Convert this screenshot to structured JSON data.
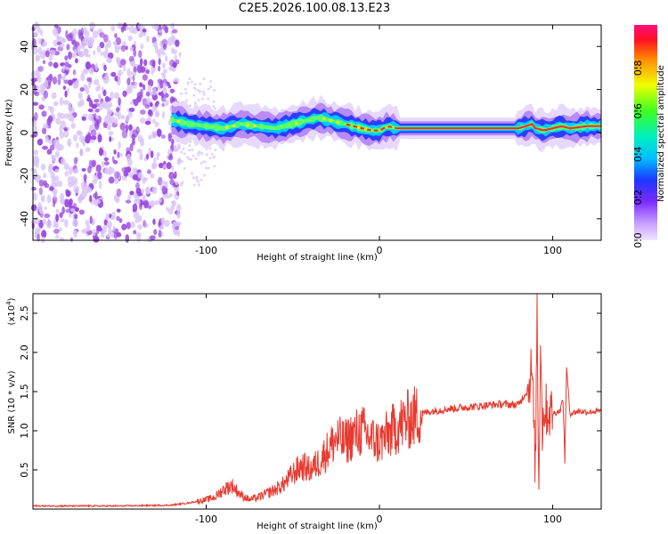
{
  "chart_data": [
    {
      "type": "heatmap",
      "title": "C2E5.2026.100.08.13.E23",
      "xlabel": "Height of straight line (km)",
      "ylabel": "Frequency (Hz)",
      "xlim": [
        -200,
        128
      ],
      "ylim": [
        -50,
        50
      ],
      "xticks": [
        -100,
        0,
        100
      ],
      "yticks": [
        -40,
        -20,
        0,
        20,
        40
      ],
      "colorbar": {
        "label": "Normalized spectral amplitude",
        "range": [
          0,
          1
        ],
        "ticks": [
          "0.0",
          "0.2",
          "0.4",
          "0.6",
          "0.8"
        ]
      },
      "noise_region_x": [
        -200,
        -115
      ],
      "ridge": {
        "x": [
          -120,
          -110,
          -100,
          -90,
          -80,
          -70,
          -60,
          -50,
          -40,
          -35,
          -30,
          -25,
          -20,
          -15,
          -10,
          -5,
          0,
          5,
          10,
          20,
          40,
          60,
          80,
          85,
          88,
          90,
          95,
          100,
          105,
          110,
          120,
          128
        ],
        "freq": [
          6,
          4,
          3,
          2,
          4,
          3,
          2,
          4,
          6,
          7,
          6,
          5,
          4,
          3,
          2,
          1,
          1,
          3,
          2,
          2,
          2,
          2,
          2,
          3,
          4,
          2,
          1,
          2,
          3,
          2,
          3,
          3
        ]
      }
    },
    {
      "type": "line",
      "xlabel": "Height of straight line (km)",
      "ylabel": "SNR (10 * v/v)",
      "exponent_label": "(x10",
      "exponent_power": "4",
      "xlim": [
        -200,
        128
      ],
      "ylim": [
        0,
        2.75
      ],
      "xticks": [
        -100,
        0,
        100
      ],
      "yticks": [
        "0.5",
        "1.0",
        "1.5",
        "2.0",
        "2.5"
      ],
      "series": [
        {
          "name": "SNR",
          "color": "#e83a2f",
          "x": [
            -200,
            -150,
            -120,
            -110,
            -100,
            -95,
            -90,
            -85,
            -80,
            -75,
            -70,
            -65,
            -60,
            -55,
            -50,
            -45,
            -40,
            -35,
            -30,
            -25,
            -20,
            -15,
            -10,
            -5,
            0,
            5,
            10,
            15,
            20,
            25,
            30,
            40,
            50,
            60,
            70,
            80,
            85,
            88,
            90,
            91,
            92,
            93,
            94,
            95,
            97,
            100,
            104,
            106,
            107,
            108,
            110,
            115,
            120,
            128
          ],
          "y": [
            0.04,
            0.04,
            0.05,
            0.08,
            0.12,
            0.15,
            0.25,
            0.3,
            0.18,
            0.12,
            0.15,
            0.2,
            0.25,
            0.32,
            0.45,
            0.55,
            0.5,
            0.6,
            0.75,
            0.9,
            0.85,
            0.95,
            1.0,
            0.9,
            0.85,
            0.95,
            1.05,
            1.12,
            1.18,
            1.22,
            1.25,
            1.28,
            1.3,
            1.32,
            1.34,
            1.33,
            1.5,
            1.8,
            0.5,
            2.6,
            0.2,
            2.3,
            1.0,
            1.3,
            1.25,
            1.22,
            1.25,
            1.4,
            0.6,
            1.8,
            1.22,
            1.25,
            1.24,
            1.25
          ]
        }
      ]
    }
  ],
  "colors": {
    "line": "#e83a2f",
    "noise": "#9a4ae0",
    "band": "#2ec4d6"
  }
}
